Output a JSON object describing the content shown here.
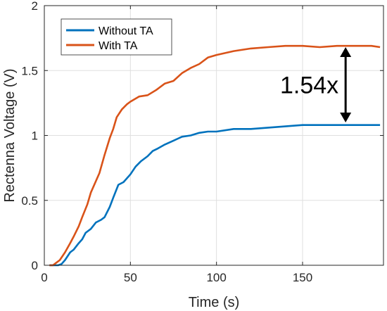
{
  "chart_data": {
    "type": "line",
    "title": "",
    "xlabel": "Time (s)",
    "ylabel": "Rectenna Voltage (V)",
    "xlim": [
      0,
      197
    ],
    "ylim": [
      0,
      2
    ],
    "xticks": [
      0,
      50,
      100,
      150
    ],
    "yticks": [
      0,
      0.5,
      1,
      1.5,
      2
    ],
    "ytick_labels": [
      "0",
      "0.5",
      "1",
      "1.5",
      "2"
    ],
    "grid": true,
    "legend_position": "top-left",
    "series": [
      {
        "name": "Without TA",
        "color": "#0072bd",
        "x": [
          3,
          8,
          10,
          12,
          15,
          17,
          20,
          22,
          24,
          27,
          30,
          33,
          35,
          38,
          40,
          43,
          46,
          50,
          53,
          56,
          60,
          63,
          66,
          70,
          75,
          80,
          85,
          90,
          95,
          100,
          110,
          120,
          130,
          140,
          150,
          160,
          170,
          180,
          190,
          195
        ],
        "y": [
          0.0,
          0.0,
          0.01,
          0.04,
          0.1,
          0.12,
          0.17,
          0.2,
          0.25,
          0.28,
          0.33,
          0.35,
          0.37,
          0.45,
          0.52,
          0.62,
          0.64,
          0.7,
          0.76,
          0.8,
          0.84,
          0.88,
          0.9,
          0.93,
          0.96,
          0.99,
          1.0,
          1.02,
          1.03,
          1.03,
          1.05,
          1.05,
          1.06,
          1.07,
          1.08,
          1.08,
          1.08,
          1.08,
          1.08,
          1.08
        ]
      },
      {
        "name": "With TA",
        "color": "#d95319",
        "x": [
          3,
          5,
          7,
          9,
          12,
          15,
          17,
          20,
          22,
          25,
          27,
          30,
          32,
          35,
          38,
          40,
          42,
          45,
          48,
          50,
          55,
          60,
          65,
          70,
          75,
          80,
          85,
          90,
          95,
          100,
          110,
          120,
          130,
          140,
          150,
          160,
          170,
          180,
          190,
          195
        ],
        "y": [
          0.0,
          0.0,
          0.02,
          0.04,
          0.1,
          0.17,
          0.22,
          0.3,
          0.37,
          0.47,
          0.56,
          0.65,
          0.71,
          0.85,
          0.98,
          1.05,
          1.14,
          1.2,
          1.24,
          1.26,
          1.3,
          1.31,
          1.35,
          1.4,
          1.42,
          1.48,
          1.52,
          1.55,
          1.6,
          1.62,
          1.65,
          1.67,
          1.68,
          1.69,
          1.69,
          1.68,
          1.69,
          1.69,
          1.69,
          1.68
        ]
      }
    ],
    "annotation": {
      "text": "1.54x",
      "arrow_x": 175,
      "arrow_y_from": 1.1,
      "arrow_y_to": 1.68
    }
  }
}
